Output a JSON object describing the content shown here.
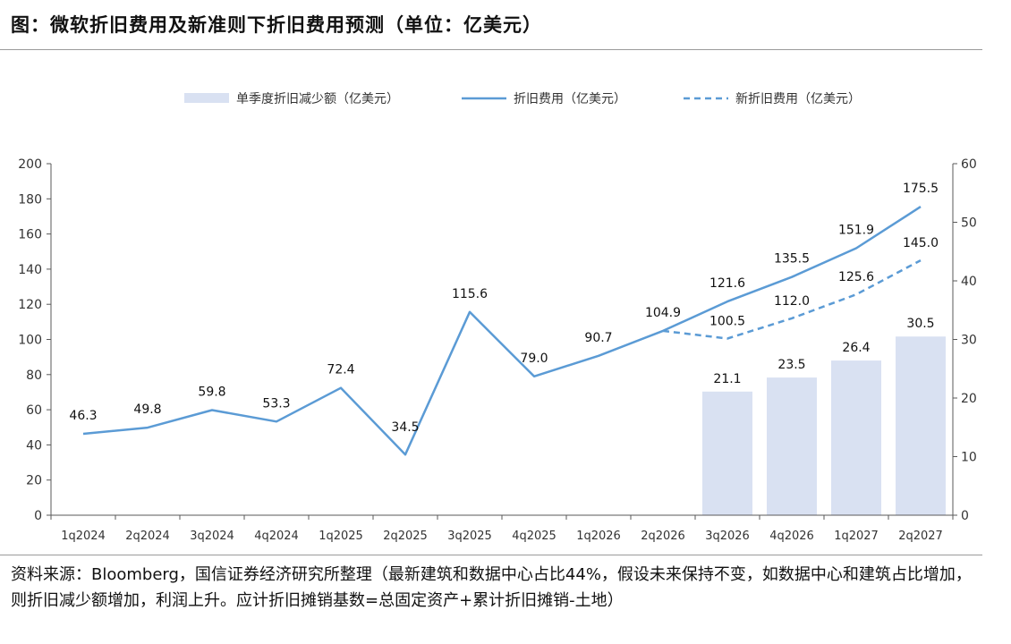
{
  "title": "图：微软折旧费用及新准则下折旧费用预测（单位：亿美元）",
  "source_note": "资料来源：Bloomberg，国信证券经济研究所整理（最新建筑和数据中心占比44%，假设未来保持不变，如数据中心和建筑占比增加，则折旧减少额增加，利润上升。应计折旧摊销基数=总固定资产+累计折旧摊销-土地）",
  "colors": {
    "bar": "#d9e1f2",
    "line": "#5b9bd5",
    "axis": "#595959",
    "text": "#333333"
  },
  "chart_data": {
    "type": "bar+line",
    "categories": [
      "1q2024",
      "2q2024",
      "3q2024",
      "4q2024",
      "1q2025",
      "2q2025",
      "3q2025",
      "4q2025",
      "1q2026",
      "2q2026",
      "3q2026",
      "4q2026",
      "1q2027",
      "2q2027"
    ],
    "series": [
      {
        "name": "单季度折旧减少额（亿美元）",
        "type": "bar",
        "axis": "right",
        "values": [
          null,
          null,
          null,
          null,
          null,
          null,
          null,
          null,
          null,
          null,
          21.1,
          23.5,
          26.4,
          30.5
        ],
        "labels": [
          "",
          "",
          "",
          "",
          "",
          "",
          "",
          "",
          "",
          "",
          "21.1",
          "23.5",
          "26.4",
          "30.5"
        ]
      },
      {
        "name": "折旧费用（亿美元）",
        "type": "line",
        "style": "solid",
        "axis": "left",
        "values": [
          46.3,
          49.8,
          59.8,
          53.3,
          72.4,
          34.5,
          115.6,
          79.0,
          90.7,
          104.9,
          121.6,
          135.5,
          151.9,
          175.5
        ],
        "labels": [
          "46.3",
          "49.8",
          "59.8",
          "53.3",
          "72.4",
          "34.5",
          "115.6",
          "79.0",
          "90.7",
          "104.9",
          "121.6",
          "135.5",
          "151.9",
          "175.5"
        ]
      },
      {
        "name": "新折旧费用（亿美元）",
        "type": "line",
        "style": "dashed",
        "axis": "left",
        "values": [
          null,
          null,
          null,
          null,
          null,
          null,
          null,
          null,
          null,
          104.9,
          100.5,
          112.0,
          125.6,
          145.0
        ],
        "labels": [
          "",
          "",
          "",
          "",
          "",
          "",
          "",
          "",
          "",
          "104.9",
          "100.5",
          "112.0",
          "125.6",
          "145.0"
        ]
      }
    ],
    "y_left": {
      "ylim": [
        0,
        200
      ],
      "ticks": [
        "0",
        "20",
        "40",
        "60",
        "80",
        "100",
        "120",
        "140",
        "160",
        "180",
        "200"
      ]
    },
    "y_right": {
      "ylim": [
        0,
        60
      ],
      "ticks": [
        "0",
        "10",
        "20",
        "30",
        "40",
        "50",
        "60"
      ]
    },
    "grid": false,
    "legend_position": "top"
  }
}
